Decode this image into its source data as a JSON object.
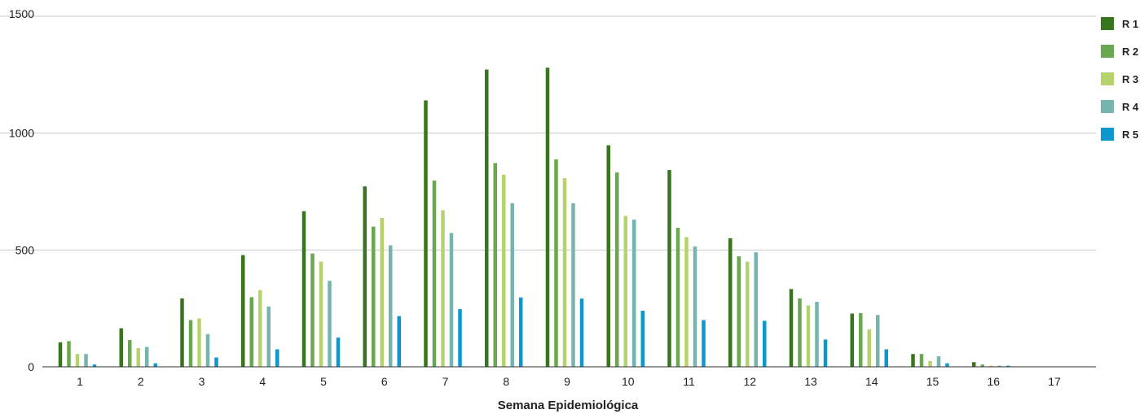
{
  "chart_data": {
    "type": "bar",
    "title": "",
    "xlabel": "Semana Epidemiológica",
    "ylabel": "",
    "ylim": [
      0,
      1500
    ],
    "yticks": [
      0,
      500,
      1000,
      1500
    ],
    "grid": true,
    "legend_position": "right",
    "categories": [
      "1",
      "2",
      "3",
      "4",
      "5",
      "6",
      "7",
      "8",
      "9",
      "10",
      "11",
      "12",
      "13",
      "14",
      "15",
      "16",
      "17"
    ],
    "series": [
      {
        "name": "R 1",
        "color": "#38761d",
        "values": [
          105,
          165,
          293,
          478,
          666,
          772,
          1140,
          1272,
          1280,
          948,
          842,
          550,
          333,
          228,
          55,
          20,
          1
        ]
      },
      {
        "name": "R 2",
        "color": "#6aa84f",
        "values": [
          110,
          115,
          200,
          298,
          485,
          600,
          797,
          872,
          888,
          832,
          595,
          473,
          293,
          230,
          55,
          10,
          1
        ]
      },
      {
        "name": "R 3",
        "color": "#b6d36b",
        "values": [
          55,
          80,
          207,
          328,
          450,
          637,
          670,
          822,
          807,
          645,
          555,
          450,
          263,
          160,
          25,
          5,
          1
        ]
      },
      {
        "name": "R 4",
        "color": "#76b5ae",
        "values": [
          55,
          85,
          140,
          258,
          368,
          520,
          573,
          700,
          700,
          630,
          515,
          490,
          278,
          222,
          45,
          5,
          1
        ]
      },
      {
        "name": "R 5",
        "color": "#0c97cf",
        "values": [
          10,
          15,
          40,
          75,
          125,
          217,
          247,
          297,
          292,
          240,
          200,
          197,
          117,
          75,
          15,
          5,
          1
        ]
      }
    ]
  }
}
